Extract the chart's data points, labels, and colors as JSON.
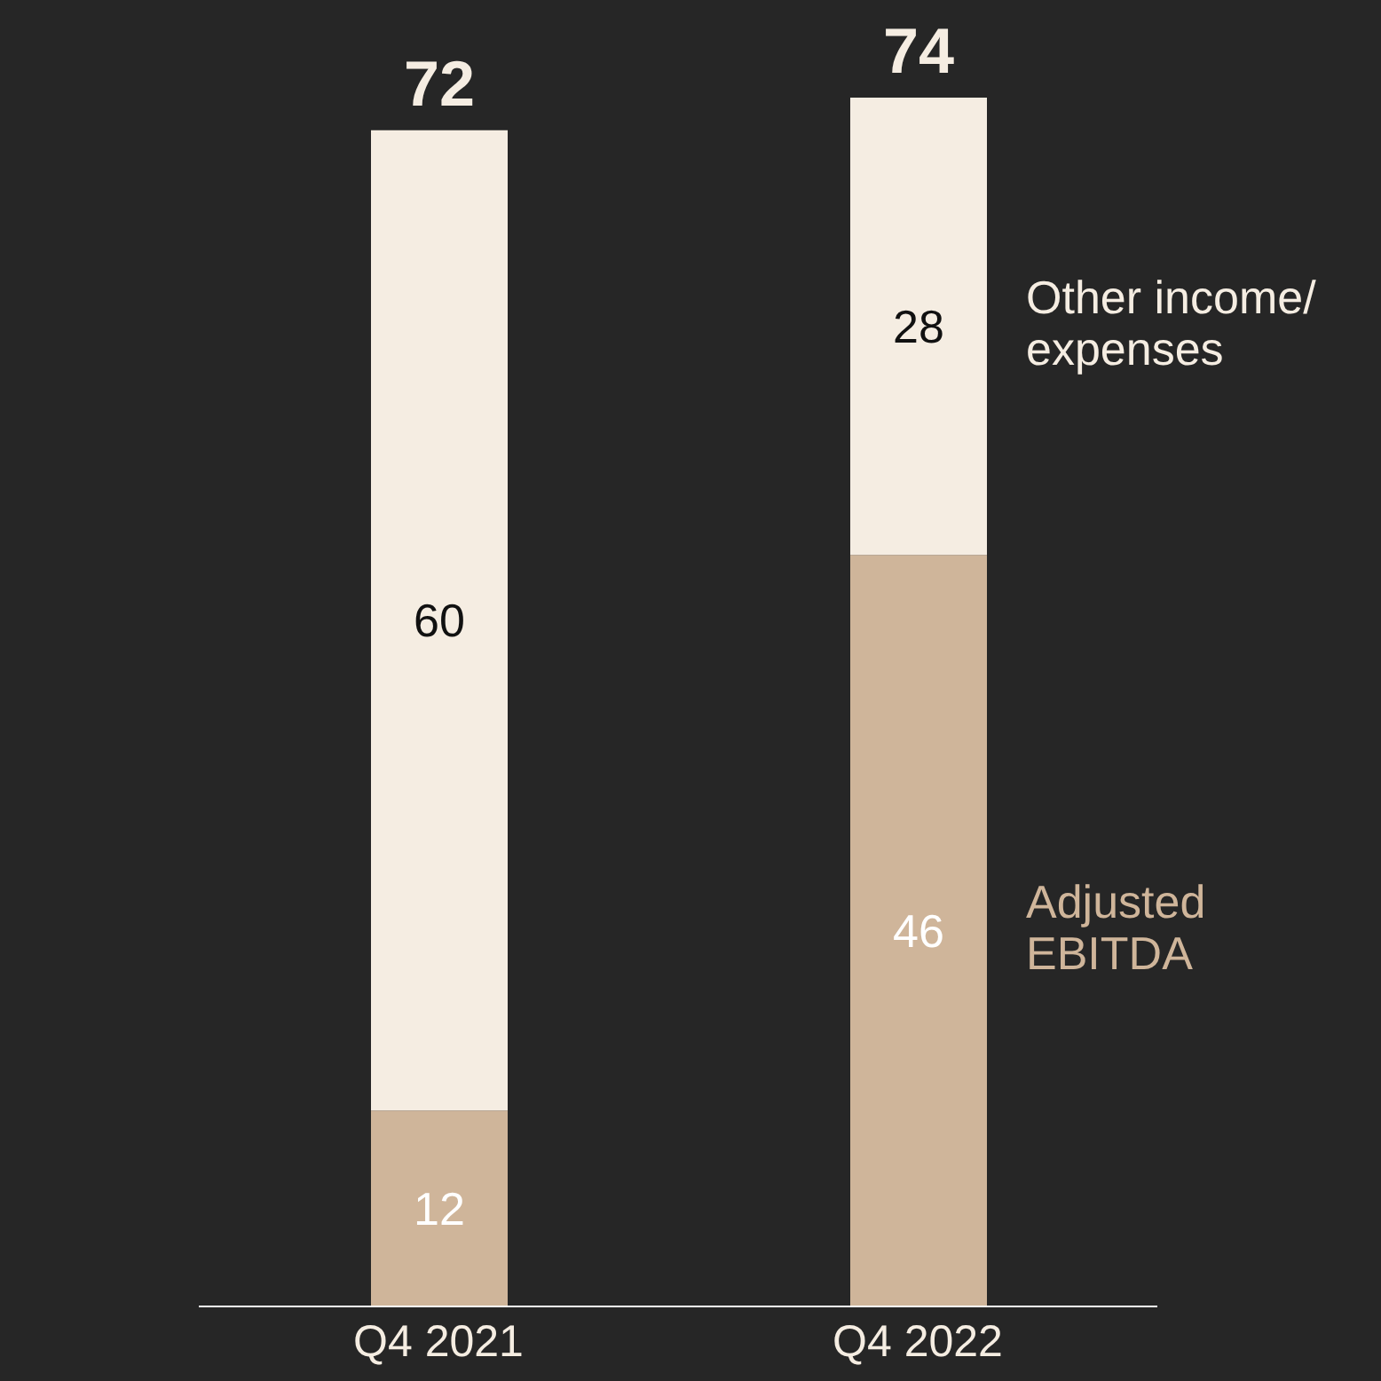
{
  "chart_data": {
    "type": "bar",
    "stacked": true,
    "categories": [
      "Q4 2021",
      "Q4 2022"
    ],
    "series": [
      {
        "name": "Adjusted EBITDA",
        "color": "#cfb59a",
        "values": [
          12,
          46
        ]
      },
      {
        "name": "Other income/ expenses",
        "color": "#f5ede2",
        "values": [
          60,
          28
        ]
      }
    ],
    "data_labels": true,
    "totals": [
      "72",
      "74"
    ],
    "legend": "right"
  }
}
